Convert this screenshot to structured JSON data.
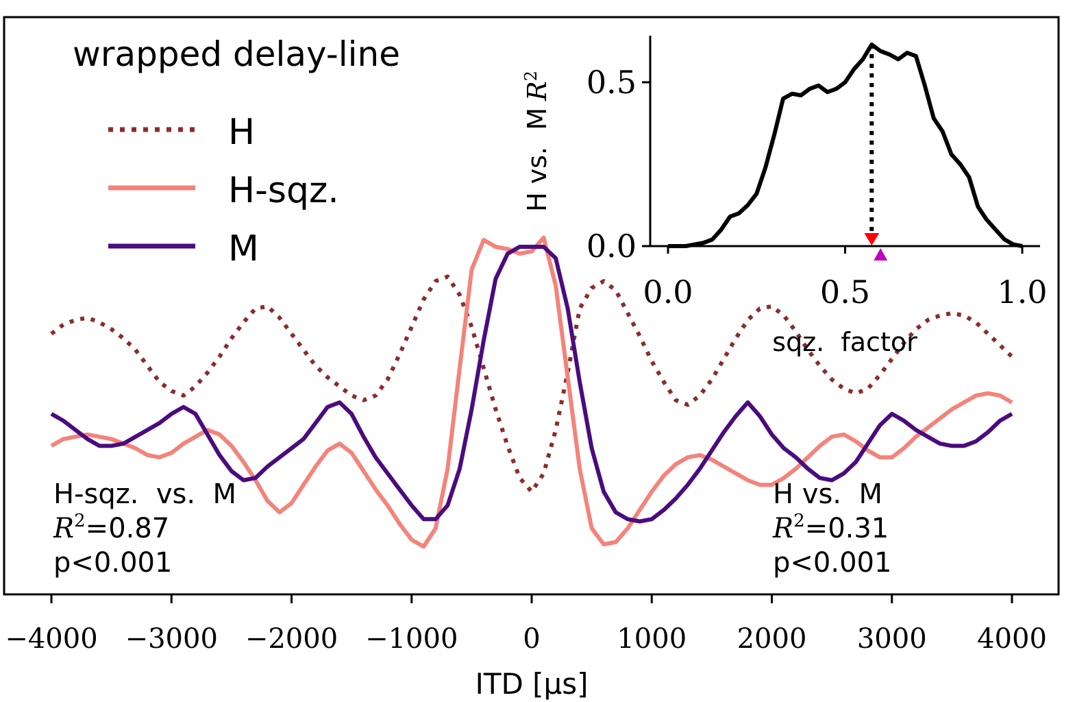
{
  "chart_data": [
    {
      "type": "line",
      "title": "wrapped delay-line",
      "xlabel": "ITD [μs]",
      "ylabel": "",
      "xlim": [
        -4100,
        4100
      ],
      "ylim": [
        -1.1,
        1.05
      ],
      "x_ticks": [
        -4000,
        -3000,
        -2000,
        -1000,
        0,
        1000,
        2000,
        3000,
        4000
      ],
      "x_tick_labels": [
        "−4000",
        "−3000",
        "−2000",
        "−1000",
        "0",
        "1000",
        "2000",
        "3000",
        "4000"
      ],
      "y_ticks": [],
      "grid": false,
      "legend_position": "upper-left",
      "x": [
        -4000,
        -3900,
        -3800,
        -3700,
        -3600,
        -3500,
        -3400,
        -3300,
        -3200,
        -3100,
        -3000,
        -2900,
        -2800,
        -2700,
        -2600,
        -2500,
        -2400,
        -2300,
        -2200,
        -2100,
        -2000,
        -1900,
        -1800,
        -1700,
        -1600,
        -1500,
        -1400,
        -1300,
        -1200,
        -1100,
        -1000,
        -900,
        -800,
        -700,
        -600,
        -500,
        -400,
        -300,
        -200,
        -100,
        0,
        100,
        200,
        300,
        400,
        500,
        600,
        700,
        800,
        900,
        1000,
        1100,
        1200,
        1300,
        1400,
        1500,
        1600,
        1700,
        1800,
        1900,
        2000,
        2100,
        2200,
        2300,
        2400,
        2500,
        2600,
        2700,
        2800,
        2900,
        3000,
        3100,
        3200,
        3300,
        3400,
        3500,
        3600,
        3700,
        3800,
        3900,
        4000
      ],
      "series": [
        {
          "name": "H",
          "color": "#8b2c2c",
          "style": "dotted",
          "values": [
            -0.13,
            -0.09,
            -0.07,
            -0.06,
            -0.08,
            -0.11,
            -0.15,
            -0.2,
            -0.27,
            -0.34,
            -0.38,
            -0.4,
            -0.36,
            -0.3,
            -0.23,
            -0.15,
            -0.08,
            -0.02,
            -0.01,
            -0.06,
            -0.13,
            -0.2,
            -0.27,
            -0.32,
            -0.36,
            -0.4,
            -0.42,
            -0.4,
            -0.33,
            -0.22,
            -0.1,
            0.02,
            0.1,
            0.12,
            0.04,
            -0.1,
            -0.28,
            -0.46,
            -0.62,
            -0.76,
            -0.82,
            -0.74,
            -0.55,
            -0.3,
            -0.02,
            0.07,
            0.1,
            0.06,
            -0.04,
            -0.14,
            -0.25,
            -0.34,
            -0.42,
            -0.44,
            -0.4,
            -0.33,
            -0.24,
            -0.15,
            -0.07,
            -0.02,
            -0.01,
            -0.05,
            -0.12,
            -0.2,
            -0.27,
            -0.33,
            -0.37,
            -0.39,
            -0.37,
            -0.31,
            -0.24,
            -0.17,
            -0.11,
            -0.07,
            -0.05,
            -0.04,
            -0.05,
            -0.08,
            -0.13,
            -0.18,
            -0.23
          ]
        },
        {
          "name": "H-sqz.",
          "color": "#f4837a",
          "style": "solid",
          "values": [
            -0.62,
            -0.59,
            -0.58,
            -0.57,
            -0.58,
            -0.59,
            -0.61,
            -0.63,
            -0.66,
            -0.67,
            -0.65,
            -0.61,
            -0.58,
            -0.55,
            -0.57,
            -0.62,
            -0.69,
            -0.77,
            -0.86,
            -0.91,
            -0.87,
            -0.79,
            -0.71,
            -0.64,
            -0.61,
            -0.65,
            -0.73,
            -0.81,
            -0.88,
            -0.96,
            -1.03,
            -1.06,
            -0.98,
            -0.72,
            -0.28,
            0.15,
            0.28,
            0.25,
            0.24,
            0.22,
            0.23,
            0.29,
            0.08,
            -0.32,
            -0.72,
            -0.98,
            -1.05,
            -1.04,
            -0.98,
            -0.9,
            -0.82,
            -0.75,
            -0.7,
            -0.67,
            -0.66,
            -0.68,
            -0.71,
            -0.74,
            -0.77,
            -0.79,
            -0.79,
            -0.76,
            -0.72,
            -0.67,
            -0.62,
            -0.58,
            -0.57,
            -0.6,
            -0.64,
            -0.67,
            -0.67,
            -0.63,
            -0.58,
            -0.54,
            -0.5,
            -0.46,
            -0.43,
            -0.4,
            -0.39,
            -0.4,
            -0.43
          ]
        },
        {
          "name": "M",
          "color": "#4a0c7e",
          "style": "solid",
          "values": [
            -0.48,
            -0.51,
            -0.55,
            -0.59,
            -0.62,
            -0.62,
            -0.61,
            -0.58,
            -0.55,
            -0.52,
            -0.48,
            -0.45,
            -0.48,
            -0.57,
            -0.66,
            -0.73,
            -0.77,
            -0.76,
            -0.71,
            -0.67,
            -0.63,
            -0.59,
            -0.52,
            -0.45,
            -0.43,
            -0.48,
            -0.58,
            -0.67,
            -0.74,
            -0.81,
            -0.88,
            -0.94,
            -0.94,
            -0.88,
            -0.72,
            -0.46,
            -0.16,
            0.11,
            0.22,
            0.25,
            0.25,
            0.25,
            0.2,
            -0.02,
            -0.34,
            -0.63,
            -0.82,
            -0.91,
            -0.94,
            -0.95,
            -0.94,
            -0.9,
            -0.85,
            -0.79,
            -0.72,
            -0.64,
            -0.56,
            -0.49,
            -0.43,
            -0.49,
            -0.57,
            -0.63,
            -0.67,
            -0.72,
            -0.76,
            -0.77,
            -0.74,
            -0.69,
            -0.61,
            -0.53,
            -0.48,
            -0.51,
            -0.55,
            -0.58,
            -0.61,
            -0.62,
            -0.62,
            -0.6,
            -0.56,
            -0.51,
            -0.48
          ]
        }
      ],
      "annotations": [
        {
          "id": "left",
          "line1": "H-sqz.  vs.  M",
          "r2_label": "R",
          "r2_sup": "2",
          "r2_value": "=0.87",
          "p_value": "p<0.001"
        },
        {
          "id": "right",
          "line1": "H vs.  M",
          "r2_label": "R",
          "r2_sup": "2",
          "r2_value": "=0.31",
          "p_value": "p<0.001"
        }
      ]
    },
    {
      "type": "line",
      "title": "",
      "xlabel": "sqz.  factor",
      "ylabel": "H vs.  M",
      "ylabel_math": "R",
      "ylabel_sup": "2",
      "xlim": [
        -0.05,
        1.05
      ],
      "ylim": [
        0,
        0.64
      ],
      "x_ticks": [
        0.0,
        0.5,
        1.0
      ],
      "x_tick_labels": [
        "0.0",
        "0.5",
        "1.0"
      ],
      "y_ticks": [
        0.0,
        0.5
      ],
      "y_tick_labels": [
        "0.0",
        "0.5"
      ],
      "grid": false,
      "series": [
        {
          "name": "R2 curve",
          "color": "#000000",
          "x": [
            0,
            0.025,
            0.05,
            0.075,
            0.1,
            0.125,
            0.15,
            0.175,
            0.2,
            0.225,
            0.25,
            0.275,
            0.3,
            0.325,
            0.35,
            0.375,
            0.4,
            0.425,
            0.45,
            0.475,
            0.5,
            0.525,
            0.55,
            0.575,
            0.6,
            0.625,
            0.65,
            0.675,
            0.7,
            0.725,
            0.75,
            0.775,
            0.8,
            0.825,
            0.85,
            0.875,
            0.9,
            0.925,
            0.95,
            0.975,
            1.0
          ],
          "values": [
            0.0,
            0.0,
            0.0,
            0.005,
            0.01,
            0.02,
            0.05,
            0.09,
            0.1,
            0.125,
            0.16,
            0.24,
            0.34,
            0.45,
            0.465,
            0.46,
            0.48,
            0.49,
            0.47,
            0.48,
            0.5,
            0.54,
            0.57,
            0.615,
            0.595,
            0.585,
            0.57,
            0.59,
            0.58,
            0.49,
            0.39,
            0.35,
            0.28,
            0.25,
            0.21,
            0.12,
            0.08,
            0.05,
            0.02,
            0.005,
            0.0
          ]
        }
      ],
      "optimum_line_x": 0.575,
      "markers": [
        {
          "name": "red-down-triangle",
          "x": 0.575,
          "color": "#ff0000"
        },
        {
          "name": "magenta-up-triangle",
          "x": 0.6,
          "color": "#c000c0"
        }
      ]
    }
  ]
}
